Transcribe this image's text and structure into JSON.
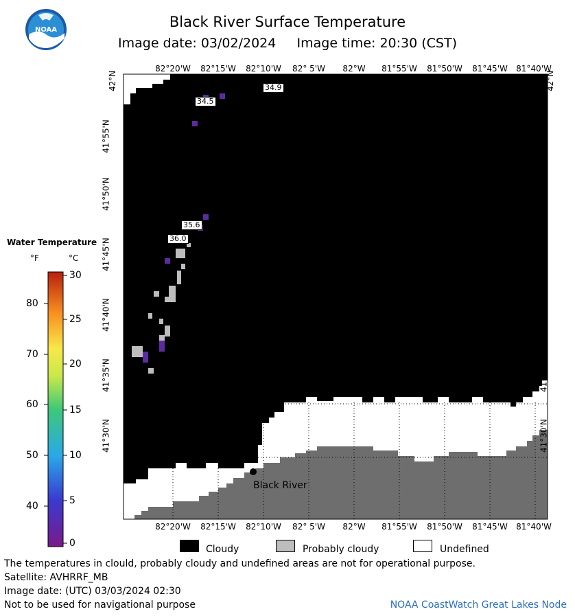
{
  "header": {
    "title": "Black River Surface Temperature",
    "subtitle": "Image date: 03/02/2024     Image time: 20:30 (CST)",
    "logo_text": "NOAA"
  },
  "map": {
    "lon_ticks": [
      "82°20'W",
      "82°15'W",
      "82°10'W",
      "82° 5'W",
      "82°W",
      "81°55'W",
      "81°50'W",
      "81°45'W",
      "81°40'W"
    ],
    "lat_ticks": [
      "42°N",
      "41°55'N",
      "41°50'N",
      "41°45'N",
      "41°40'N",
      "41°35'N",
      "41°30'N"
    ],
    "temperature_labels": [
      {
        "value": "34.9"
      },
      {
        "value": "34.5"
      },
      {
        "value": "35.6"
      },
      {
        "value": "36.0"
      }
    ],
    "place_name": "Black River",
    "colors": {
      "cloudy": "#000000",
      "probably_cloudy": "#bdbdbd",
      "undefined": "#ffffff",
      "land": "#6e6e6e",
      "cold_water": "#5b2ca0"
    }
  },
  "colorbar": {
    "title": "Water Temperature",
    "unit_f": "°F",
    "unit_c": "°C",
    "f_ticks": [
      "80",
      "70",
      "60",
      "50",
      "40"
    ],
    "c_ticks": [
      "30",
      "25",
      "20",
      "15",
      "10",
      "5",
      "0"
    ],
    "range_c": [
      0,
      30
    ]
  },
  "legend": {
    "cloudy": "Cloudy",
    "probably_cloudy": "Probably cloudy",
    "undefined": "Undefined"
  },
  "footer": {
    "note": "The temperatures in clould, probably cloudy and undefined areas are not for operational purpose.",
    "satellite": "Satellite: AVHRRF_MB",
    "utc_date": "Image date: (UTC) 03/03/2024  02:30",
    "warning": "Not to be used for navigational purpose",
    "credit": "NOAA CoastWatch Great Lakes Node"
  }
}
